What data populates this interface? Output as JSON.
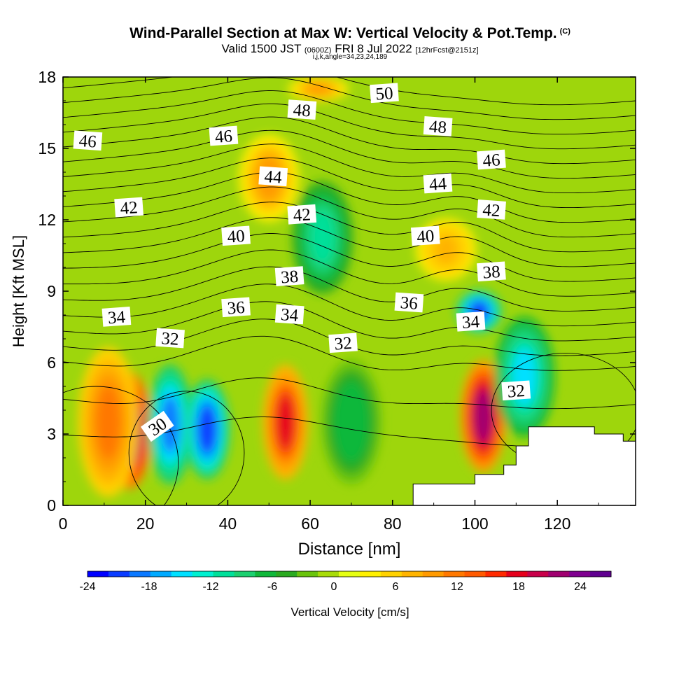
{
  "header": {
    "title": "Wind-Parallel Section at Max W: Vertical Velocity & Pot.Temp.",
    "title_mark": "(C)",
    "valid_prefix": "Valid 1500 JST",
    "valid_utc": "(0600Z)",
    "valid_date": "FRI 8 Jul 2022",
    "forecast_info": "[12hrFcst@2151z]",
    "section_params": "i,j,k,angle=34,23,24,189"
  },
  "chart_data": {
    "type": "heatmap",
    "xlabel": "Distance [nm]",
    "ylabel": "Height [Kft MSL]",
    "xlim": [
      0,
      139
    ],
    "ylim": [
      0,
      18
    ],
    "xticks": [
      0,
      20,
      40,
      60,
      80,
      100,
      120
    ],
    "yticks": [
      0,
      3,
      6,
      9,
      12,
      15,
      18
    ],
    "colorbar": {
      "label": "Vertical Velocity [cm/s]",
      "ticks": [
        -24,
        -18,
        -12,
        -6,
        0,
        6,
        12,
        18,
        24
      ],
      "range": [
        -24,
        27
      ],
      "colors": [
        "#0000ff",
        "#0a3cff",
        "#0a78ff",
        "#00aaff",
        "#00e0ff",
        "#00f0d0",
        "#00e09a",
        "#1cd070",
        "#10b83a",
        "#2aaa20",
        "#6ac40c",
        "#a8dc08",
        "#e6ff12",
        "#fff000",
        "#ffd200",
        "#ffb400",
        "#ff9a00",
        "#ff7800",
        "#ff5a00",
        "#ff2a00",
        "#e6001c",
        "#c8004a",
        "#a00070",
        "#800090",
        "#600090"
      ]
    },
    "vertical_velocity_features": [
      {
        "x": 16,
        "y_range": [
          0.8,
          5.5
        ],
        "value": 26
      },
      {
        "x": 11,
        "y_range": [
          0.5,
          6.5
        ],
        "value": 12
      },
      {
        "x": 26,
        "y_range": [
          1,
          5.8
        ],
        "value": -18
      },
      {
        "x": 35,
        "y_range": [
          1.2,
          5.2
        ],
        "value": -20
      },
      {
        "x": 54,
        "y_range": [
          1.2,
          5.8
        ],
        "value": 17
      },
      {
        "x": 70,
        "y_range": [
          1,
          6
        ],
        "value": -7
      },
      {
        "x": 102,
        "y_range": [
          1.5,
          6
        ],
        "value": 22
      },
      {
        "x": 112,
        "y_range": [
          3,
          7.8
        ],
        "value": -14
      },
      {
        "x": 101,
        "y_range": [
          7.3,
          9
        ],
        "value": -20
      },
      {
        "x": 63,
        "y_range": [
          9,
          13.5
        ],
        "value": -10
      },
      {
        "x": 50,
        "y_range": [
          12,
          15.5
        ],
        "value": 10
      },
      {
        "x": 93,
        "y_range": [
          9.5,
          12
        ],
        "value": 8
      },
      {
        "x": 62,
        "y_range": [
          17,
          18
        ],
        "value": 9
      }
    ],
    "potential_temperature_contours": {
      "values": [
        30,
        32,
        34,
        36,
        38,
        40,
        42,
        44,
        46,
        48,
        50
      ],
      "interval": 1
    },
    "contour_labels": [
      {
        "text": "46",
        "x": 6,
        "y": 15.3
      },
      {
        "text": "42",
        "x": 16,
        "y": 12.5
      },
      {
        "text": "34",
        "x": 13,
        "y": 7.9
      },
      {
        "text": "32",
        "x": 26,
        "y": 7.0
      },
      {
        "text": "30",
        "x": 23,
        "y": 3.3
      },
      {
        "text": "46",
        "x": 39,
        "y": 15.5
      },
      {
        "text": "44",
        "x": 51,
        "y": 13.8
      },
      {
        "text": "40",
        "x": 42,
        "y": 11.3
      },
      {
        "text": "36",
        "x": 42,
        "y": 8.3
      },
      {
        "text": "48",
        "x": 58,
        "y": 16.6
      },
      {
        "text": "42",
        "x": 58,
        "y": 12.2
      },
      {
        "text": "38",
        "x": 55,
        "y": 9.6
      },
      {
        "text": "34",
        "x": 55,
        "y": 8.0
      },
      {
        "text": "32",
        "x": 68,
        "y": 6.8
      },
      {
        "text": "50",
        "x": 78,
        "y": 17.3
      },
      {
        "text": "48",
        "x": 91,
        "y": 15.9
      },
      {
        "text": "44",
        "x": 91,
        "y": 13.5
      },
      {
        "text": "40",
        "x": 88,
        "y": 11.3
      },
      {
        "text": "36",
        "x": 84,
        "y": 8.5
      },
      {
        "text": "34",
        "x": 99,
        "y": 7.7
      },
      {
        "text": "46",
        "x": 104,
        "y": 14.5
      },
      {
        "text": "42",
        "x": 104,
        "y": 12.4
      },
      {
        "text": "38",
        "x": 104,
        "y": 9.8
      },
      {
        "text": "32",
        "x": 110,
        "y": 4.8
      }
    ],
    "terrain": {
      "x": [
        82,
        85,
        94,
        100,
        107,
        110,
        113,
        129,
        129,
        136,
        139
      ],
      "y": [
        0,
        0.9,
        0.9,
        1.3,
        1.7,
        2.5,
        3.3,
        3.3,
        3.0,
        2.7,
        2.7
      ]
    }
  }
}
